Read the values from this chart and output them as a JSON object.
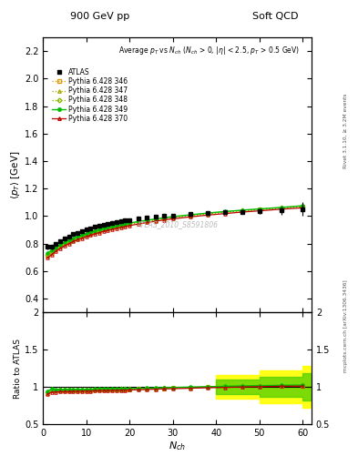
{
  "title_left": "900 GeV pp",
  "title_right": "Soft QCD",
  "watermark": "ATLAS_2010_S8591806",
  "ylabel_main": "$\\langle p_T \\rangle$ [GeV]",
  "ylabel_ratio": "Ratio to ATLAS",
  "xlabel": "$N_{ch}$",
  "right_label_top": "Rivet 3.1.10, ≥ 3.2M events",
  "right_label_bottom": "mcplots.cern.ch [arXiv:1306.3436]",
  "ylim_main": [
    0.3,
    2.3
  ],
  "ylim_ratio": [
    0.5,
    2.0
  ],
  "xlim": [
    0,
    62
  ],
  "atlas_x": [
    1,
    2,
    3,
    4,
    5,
    6,
    7,
    8,
    9,
    10,
    11,
    12,
    13,
    14,
    15,
    16,
    17,
    18,
    19,
    20,
    22,
    24,
    26,
    28,
    30,
    34,
    38,
    42,
    46,
    50,
    55,
    60
  ],
  "atlas_y": [
    0.775,
    0.775,
    0.8,
    0.82,
    0.838,
    0.853,
    0.867,
    0.88,
    0.892,
    0.902,
    0.912,
    0.92,
    0.928,
    0.936,
    0.943,
    0.95,
    0.956,
    0.962,
    0.967,
    0.972,
    0.98,
    0.988,
    0.994,
    1.0,
    1.005,
    1.013,
    1.02,
    1.026,
    1.031,
    1.036,
    1.042,
    1.05
  ],
  "atlas_yerr": [
    0.02,
    0.015,
    0.013,
    0.012,
    0.011,
    0.01,
    0.01,
    0.01,
    0.01,
    0.01,
    0.01,
    0.01,
    0.01,
    0.01,
    0.01,
    0.01,
    0.01,
    0.01,
    0.01,
    0.01,
    0.01,
    0.01,
    0.01,
    0.01,
    0.01,
    0.01,
    0.01,
    0.012,
    0.015,
    0.02,
    0.03,
    0.05
  ],
  "pythia_x": [
    1,
    2,
    3,
    4,
    5,
    6,
    7,
    8,
    9,
    10,
    11,
    12,
    13,
    14,
    15,
    16,
    17,
    18,
    19,
    20,
    22,
    24,
    26,
    28,
    30,
    34,
    38,
    42,
    46,
    50,
    55,
    60
  ],
  "p346_y": [
    0.71,
    0.733,
    0.757,
    0.778,
    0.796,
    0.812,
    0.826,
    0.839,
    0.851,
    0.862,
    0.872,
    0.882,
    0.891,
    0.9,
    0.908,
    0.915,
    0.922,
    0.929,
    0.935,
    0.941,
    0.952,
    0.962,
    0.972,
    0.981,
    0.989,
    1.003,
    1.016,
    1.027,
    1.037,
    1.046,
    1.057,
    1.066
  ],
  "p347_y": [
    0.715,
    0.738,
    0.762,
    0.782,
    0.8,
    0.815,
    0.829,
    0.842,
    0.854,
    0.865,
    0.875,
    0.885,
    0.894,
    0.902,
    0.91,
    0.917,
    0.924,
    0.931,
    0.937,
    0.943,
    0.954,
    0.964,
    0.973,
    0.982,
    0.99,
    1.004,
    1.017,
    1.028,
    1.038,
    1.047,
    1.058,
    1.068
  ],
  "p348_y": [
    0.72,
    0.742,
    0.765,
    0.785,
    0.803,
    0.818,
    0.832,
    0.845,
    0.857,
    0.867,
    0.877,
    0.887,
    0.896,
    0.904,
    0.912,
    0.919,
    0.926,
    0.933,
    0.939,
    0.945,
    0.956,
    0.966,
    0.975,
    0.984,
    0.992,
    1.006,
    1.019,
    1.03,
    1.04,
    1.049,
    1.06,
    1.072
  ],
  "p349_y": [
    0.73,
    0.752,
    0.774,
    0.793,
    0.81,
    0.825,
    0.838,
    0.851,
    0.862,
    0.872,
    0.882,
    0.892,
    0.901,
    0.909,
    0.917,
    0.924,
    0.931,
    0.937,
    0.943,
    0.949,
    0.96,
    0.97,
    0.979,
    0.988,
    0.996,
    1.009,
    1.022,
    1.033,
    1.043,
    1.052,
    1.063,
    1.075
  ],
  "p370_y": [
    0.695,
    0.72,
    0.745,
    0.766,
    0.784,
    0.8,
    0.815,
    0.828,
    0.84,
    0.851,
    0.861,
    0.871,
    0.88,
    0.889,
    0.897,
    0.904,
    0.912,
    0.919,
    0.925,
    0.931,
    0.942,
    0.953,
    0.963,
    0.972,
    0.98,
    0.994,
    1.007,
    1.018,
    1.029,
    1.038,
    1.05,
    1.06
  ],
  "color_346": "#dd9900",
  "color_347": "#aaaa00",
  "color_348": "#88bb00",
  "color_349": "#00bb00",
  "color_370": "#bb0000",
  "band_color_yellow": "#ffff00",
  "band_color_green": "#44cc00",
  "ratio_yticks": [
    0.5,
    1.0,
    1.5,
    2.0
  ],
  "main_yticks": [
    0.4,
    0.6,
    0.8,
    1.0,
    1.2,
    1.4,
    1.6,
    1.8,
    2.0,
    2.2
  ]
}
